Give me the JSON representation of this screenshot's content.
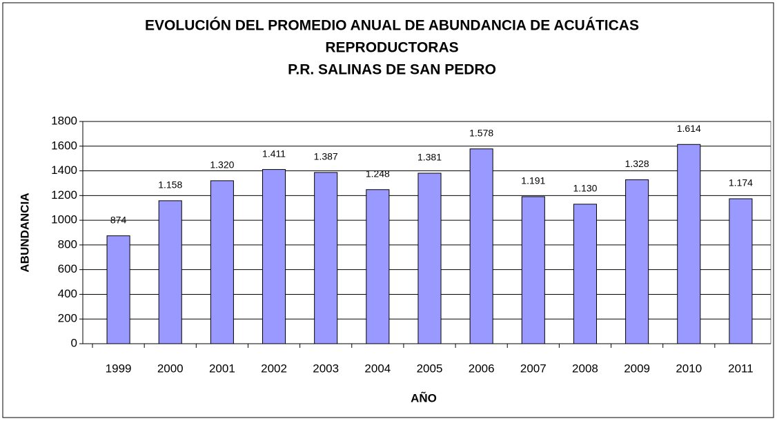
{
  "chart_data": {
    "type": "bar",
    "title": [
      "EVOLUCIÓN DEL PROMEDIO ANUAL DE ABUNDANCIA DE ACUÁTICAS",
      "REPRODUCTORAS",
      "P.R. SALINAS DE SAN PEDRO"
    ],
    "x_label": "AÑO",
    "y_label": "ABUNDANCIA",
    "categories": [
      "1999",
      "2000",
      "2001",
      "2002",
      "2003",
      "2004",
      "2005",
      "2006",
      "2007",
      "2008",
      "2009",
      "2010",
      "2011"
    ],
    "values": [
      874,
      1158,
      1320,
      1411,
      1387,
      1248,
      1381,
      1578,
      1191,
      1130,
      1328,
      1614,
      1174
    ],
    "value_labels": [
      "874",
      "1.158",
      "1.320",
      "1.411",
      "1.387",
      "1.248",
      "1.381",
      "1.578",
      "1.191",
      "1.130",
      "1.328",
      "1.614",
      "1.174"
    ],
    "color": "#9999ff",
    "ylim": [
      0,
      1800
    ],
    "yticks": [
      0,
      200,
      400,
      600,
      800,
      1000,
      1200,
      1400,
      1600,
      1800
    ],
    "grid": true
  }
}
